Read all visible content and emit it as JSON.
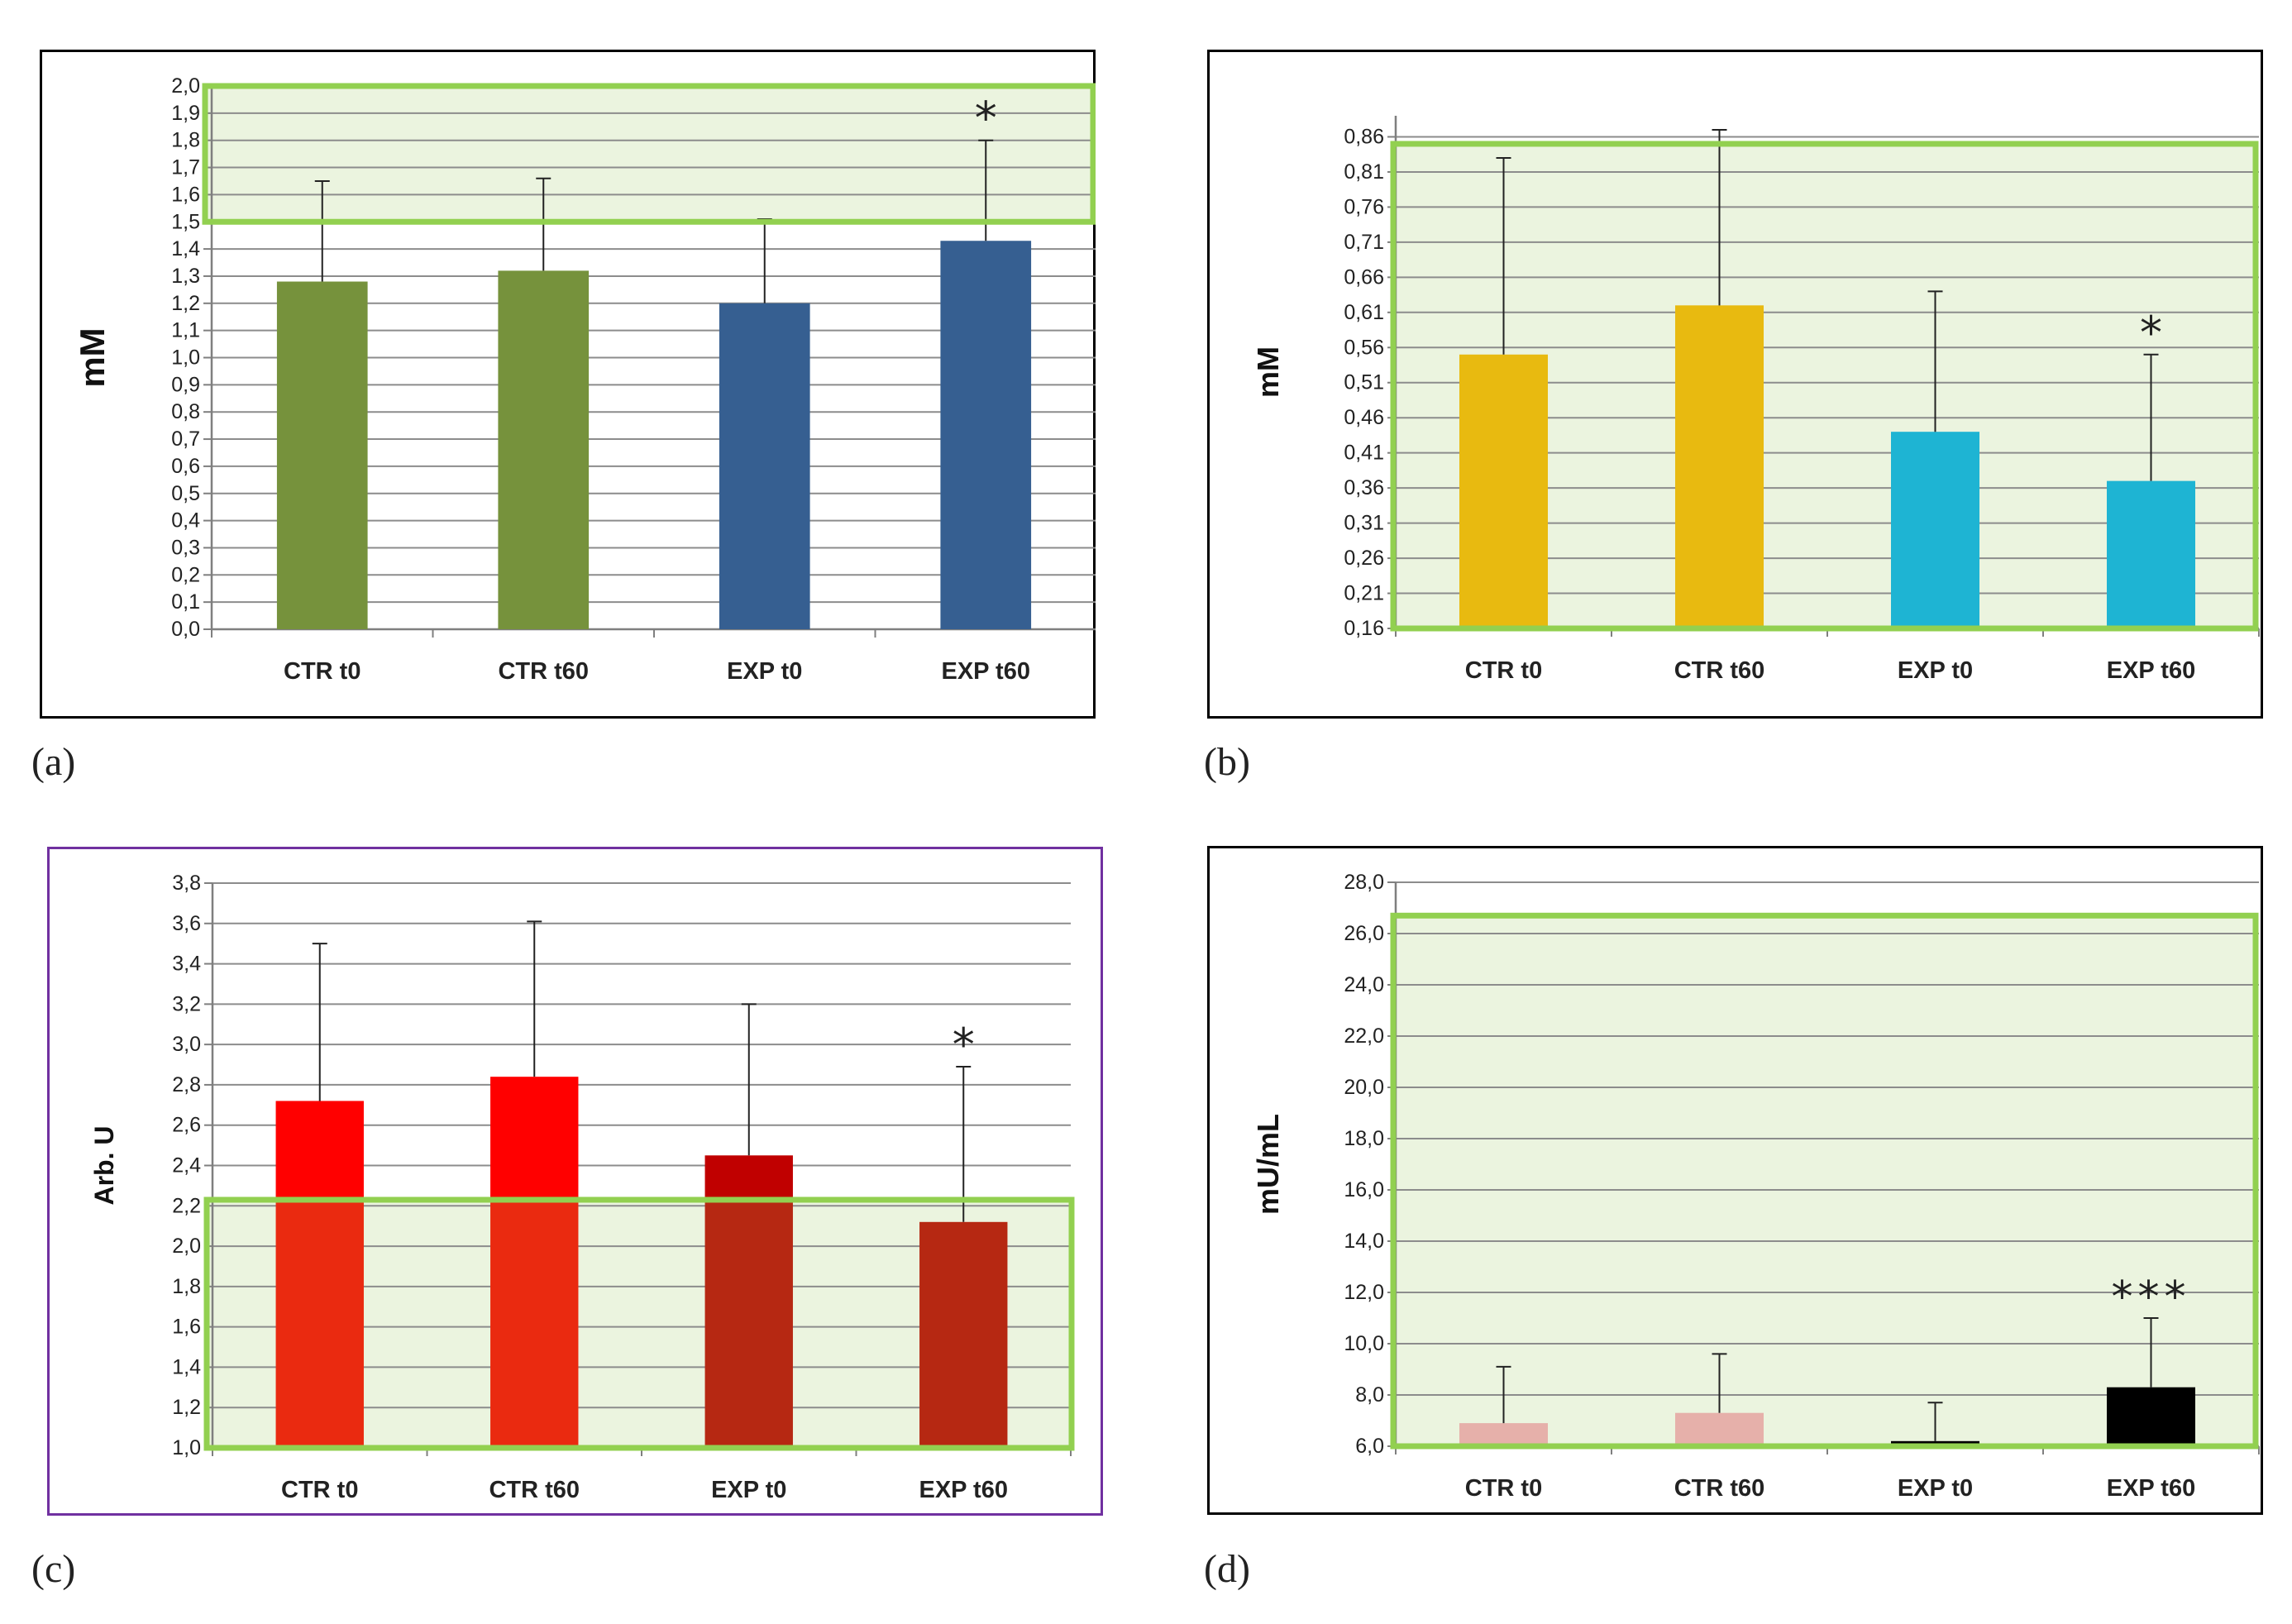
{
  "panels": [
    {
      "label": "(a)"
    },
    {
      "label": "(b)"
    },
    {
      "label": "(c)"
    },
    {
      "label": "(d)"
    }
  ],
  "chart_data": [
    {
      "type": "bar",
      "panel": "(a)",
      "categories": [
        "CTR t0",
        "CTR t60",
        "EXP t0",
        "EXP t60"
      ],
      "values": [
        1.28,
        1.32,
        1.2,
        1.43
      ],
      "errors": [
        0.37,
        0.34,
        0.31,
        0.37
      ],
      "bar_colors": [
        "#76923c",
        "#76923c",
        "#365f91",
        "#365f91"
      ],
      "ylabel": "mM",
      "ylim": [
        0.0,
        2.0
      ],
      "tick_step": 0.1,
      "tick_decimals": 1,
      "tick_labels": [
        "0,0",
        "0,1",
        "0,2",
        "0,3",
        "0,4",
        "0,5",
        "0,6",
        "0,7",
        "0,8",
        "0,9",
        "1,0",
        "1,1",
        "1,2",
        "1,3",
        "1,4",
        "1,5",
        "1,6",
        "1,7",
        "1,8",
        "1,9",
        "2,0"
      ],
      "grid": true,
      "reference_range": [
        1.5,
        2.0
      ],
      "significance": [
        {
          "category": "EXP t60",
          "text": "*"
        }
      ],
      "frame_color": "#000000"
    },
    {
      "type": "bar",
      "panel": "(b)",
      "categories": [
        "CTR t0",
        "CTR t60",
        "EXP t0",
        "EXP t60"
      ],
      "values": [
        0.55,
        0.62,
        0.44,
        0.37
      ],
      "errors": [
        0.28,
        0.25,
        0.2,
        0.18
      ],
      "bar_colors": [
        "#e8ba10",
        "#e8ba10",
        "#1eb4d3",
        "#1eb4d3"
      ],
      "ylabel": "mM",
      "ylim": [
        0.16,
        0.89
      ],
      "tick_values": [
        0.16,
        0.21,
        0.26,
        0.31,
        0.36,
        0.41,
        0.46,
        0.51,
        0.56,
        0.61,
        0.66,
        0.71,
        0.76,
        0.81,
        0.86
      ],
      "tick_labels": [
        "0,16",
        "0,21",
        "0,26",
        "0,31",
        "0,36",
        "0,41",
        "0,46",
        "0,51",
        "0,56",
        "0,61",
        "0,66",
        "0,71",
        "0,76",
        "0,81",
        "0,86"
      ],
      "grid": true,
      "reference_range": [
        0.16,
        0.85
      ],
      "significance": [
        {
          "category": "EXP t60",
          "text": "*"
        }
      ],
      "frame_color": "#000000"
    },
    {
      "type": "bar",
      "panel": "(c)",
      "categories": [
        "CTR t0",
        "CTR t60",
        "EXP t0",
        "EXP t60"
      ],
      "values": [
        2.72,
        2.84,
        2.45,
        2.12
      ],
      "errors": [
        0.78,
        0.77,
        0.75,
        0.77
      ],
      "bar_colors": [
        "#ff0000",
        "#ff0000",
        "#c00000",
        "#c00000"
      ],
      "bar_colors_in_range": [
        "#ea2a10",
        "#ea2a10",
        "#b62812",
        "#b62812"
      ],
      "ylabel": "Arb. U",
      "ylim": [
        1.0,
        3.8
      ],
      "tick_labels": [
        "1,0",
        "1,2",
        "1,4",
        "1,6",
        "1,8",
        "2,0",
        "2,2",
        "2,4",
        "2,6",
        "2,8",
        "3,0",
        "3,2",
        "3,4",
        "3,6",
        "3,8"
      ],
      "grid": true,
      "reference_range": [
        1.0,
        2.23
      ],
      "significance": [
        {
          "category": "EXP t60",
          "text": "*"
        }
      ],
      "frame_color": "#7030a0"
    },
    {
      "type": "bar",
      "panel": "(d)",
      "categories": [
        "CTR t0",
        "CTR t60",
        "EXP t0",
        "EXP t60"
      ],
      "values": [
        6.9,
        7.3,
        6.2,
        8.3
      ],
      "errors": [
        2.2,
        2.3,
        1.5,
        2.7
      ],
      "bar_colors": [
        "#e6b0aa",
        "#e6b0aa",
        "#000000",
        "#000000"
      ],
      "ylabel": "mU/mL",
      "ylim": [
        6.0,
        28.0
      ],
      "tick_labels": [
        "6,0",
        "8,0",
        "10,0",
        "12,0",
        "14,0",
        "16,0",
        "18,0",
        "20,0",
        "22,0",
        "24,0",
        "26,0",
        "28,0"
      ],
      "grid": true,
      "reference_range": [
        6.0,
        26.7
      ],
      "significance": [
        {
          "category": "EXP t60",
          "text": "***"
        }
      ],
      "frame_color": "#000000"
    }
  ]
}
